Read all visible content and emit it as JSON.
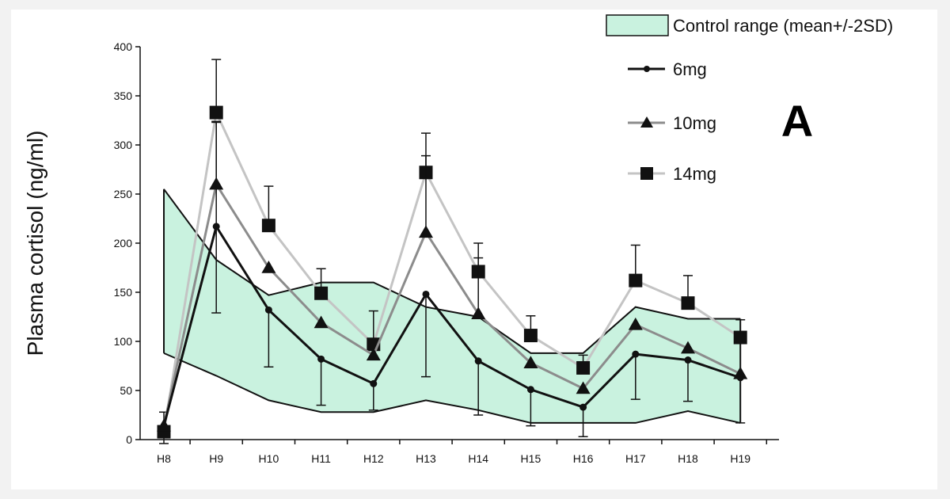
{
  "chart_data": {
    "type": "line",
    "panel_label": "A",
    "ylabel": "Plasma cortisol (ng/ml)",
    "xlabel": "",
    "ylim": [
      0,
      400
    ],
    "yticks": [
      "0",
      "50",
      "100",
      "150",
      "200",
      "250",
      "300",
      "350",
      "400"
    ],
    "categories": [
      "H8",
      "H9",
      "H10",
      "H11",
      "H12",
      "H13",
      "H14",
      "H15",
      "H16",
      "H17",
      "H18",
      "H19"
    ],
    "control_range": {
      "name": "Control range (mean+/-2SD)",
      "color": "#c9f2df",
      "upper": [
        255,
        183,
        147,
        160,
        160,
        135,
        125,
        88,
        88,
        135,
        123,
        123
      ],
      "lower": [
        88,
        65,
        40,
        28,
        28,
        40,
        30,
        17,
        17,
        17,
        29,
        17
      ]
    },
    "series": [
      {
        "name": "6mg",
        "color": "#111111",
        "marker": "circle",
        "values": [
          14,
          217,
          132,
          82,
          57,
          148,
          80,
          51,
          33,
          87,
          81,
          63
        ],
        "error_low": [
          0,
          88,
          58,
          47,
          27,
          84,
          55,
          37,
          30,
          46,
          42,
          46
        ],
        "error_high": [
          0,
          107,
          0,
          0,
          0,
          0,
          0,
          0,
          0,
          0,
          0,
          0
        ]
      },
      {
        "name": "10mg",
        "color": "#8c8c8c",
        "marker": "triangle",
        "values": [
          14,
          260,
          175,
          119,
          86,
          211,
          128,
          78,
          52,
          117,
          93,
          67
        ],
        "error_low": [
          0,
          0,
          0,
          0,
          0,
          0,
          0,
          0,
          0,
          0,
          0,
          0
        ],
        "error_high": [
          0,
          63,
          0,
          0,
          0,
          78,
          57,
          0,
          0,
          0,
          0,
          0
        ]
      },
      {
        "name": "14mg",
        "color": "#c4c4c4",
        "marker": "square",
        "values": [
          8,
          333,
          218,
          149,
          97,
          272,
          171,
          106,
          73,
          162,
          139,
          104
        ],
        "error_low": [
          12,
          0,
          0,
          0,
          0,
          0,
          0,
          0,
          0,
          0,
          0,
          0
        ],
        "error_high": [
          20,
          54,
          40,
          25,
          34,
          40,
          29,
          20,
          13,
          36,
          28,
          18
        ]
      }
    ],
    "legend_position": "top-right",
    "grid": false
  }
}
